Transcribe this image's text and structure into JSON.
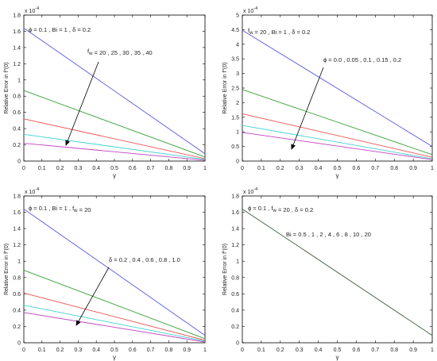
{
  "chart_data": [
    {
      "type": "line",
      "xlabel": "γ",
      "ylabel": "Relative Error in  f″(0)",
      "y_multiplier": "x 10",
      "y_exponent": "-4",
      "xlim": [
        0,
        1
      ],
      "ylim": [
        0,
        1.8
      ],
      "x_ticks": [
        "0",
        "0.1",
        "0.2",
        "0.3",
        "0.4",
        "0.5",
        "0.6",
        "0.7",
        "0.8",
        "0.9",
        "1"
      ],
      "y_ticks": [
        "0",
        "0.2",
        "0.4",
        "0.6",
        "0.8",
        "1",
        "1.2",
        "1.4",
        "1.6",
        "1.8"
      ],
      "params_label": "ϕ = 0.1  , Bi = 1 , δ = 0.2",
      "arrow_label": "f_w = 20 , 25 , 30 , 35 , 40",
      "series": [
        {
          "color": "#5a5ae0",
          "x": [
            0,
            1
          ],
          "y": [
            1.64,
            0.09
          ]
        },
        {
          "color": "#3aa03a",
          "x": [
            0,
            1
          ],
          "y": [
            0.87,
            0.05
          ]
        },
        {
          "color": "#e85050",
          "x": [
            0,
            1
          ],
          "y": [
            0.52,
            0.03
          ]
        },
        {
          "color": "#40d0d0",
          "x": [
            0,
            1
          ],
          "y": [
            0.33,
            0.02
          ]
        },
        {
          "color": "#c040c0",
          "x": [
            0,
            1
          ],
          "y": [
            0.22,
            0.01
          ]
        }
      ]
    },
    {
      "type": "line",
      "xlabel": "γ",
      "ylabel": "Relative Error in  f″(0)",
      "y_multiplier": "x 10",
      "y_exponent": "-4",
      "xlim": [
        0,
        1
      ],
      "ylim": [
        0,
        5
      ],
      "x_ticks": [
        "0",
        "0.1",
        "0.2",
        "0.3",
        "0.4",
        "0.5",
        "0.6",
        "0.7",
        "0.8",
        "0.9",
        "1"
      ],
      "y_ticks": [
        "0",
        "0.5",
        "1",
        "1.5",
        "2",
        "2.5",
        "3",
        "3.5",
        "4",
        "4.5",
        "5"
      ],
      "params_label": "f_w = 20  , Bi = 1 , δ = 0.2",
      "arrow_label": "ϕ = 0.0 , 0.05 , 0.1 , 0.15 , 0.2",
      "series": [
        {
          "color": "#5a5ae0",
          "x": [
            0,
            1
          ],
          "y": [
            4.48,
            0.5
          ]
        },
        {
          "color": "#3aa03a",
          "x": [
            0,
            1
          ],
          "y": [
            2.45,
            0.22
          ]
        },
        {
          "color": "#e85050",
          "x": [
            0,
            1
          ],
          "y": [
            1.62,
            0.13
          ]
        },
        {
          "color": "#40d0d0",
          "x": [
            0,
            1
          ],
          "y": [
            1.22,
            0.08
          ]
        },
        {
          "color": "#c040c0",
          "x": [
            0,
            1
          ],
          "y": [
            0.98,
            0.05
          ]
        }
      ]
    },
    {
      "type": "line",
      "xlabel": "γ",
      "ylabel": "Relative Error in  f″(0)",
      "y_multiplier": "x 10",
      "y_exponent": "-4",
      "xlim": [
        0,
        1
      ],
      "ylim": [
        0,
        1.8
      ],
      "x_ticks": [
        "0",
        "0.1",
        "0.2",
        "0.3",
        "0.4",
        "0.5",
        "0.6",
        "0.7",
        "0.8",
        "0.9",
        "1"
      ],
      "y_ticks": [
        "0",
        "0.2",
        "0.4",
        "0.6",
        "0.8",
        "1",
        "1.2",
        "1.4",
        "1.6",
        "1.8"
      ],
      "params_label": "ϕ = 0.1  , Bi = 1 , f_w = 20",
      "arrow_label": "δ = 0.2 , 0.4 , 0.6 , 0.8 , 1.0",
      "series": [
        {
          "color": "#5a5ae0",
          "x": [
            0,
            1
          ],
          "y": [
            1.64,
            0.09
          ]
        },
        {
          "color": "#3aa03a",
          "x": [
            0,
            1
          ],
          "y": [
            0.89,
            0.05
          ]
        },
        {
          "color": "#e85050",
          "x": [
            0,
            1
          ],
          "y": [
            0.61,
            0.03
          ]
        },
        {
          "color": "#40d0d0",
          "x": [
            0,
            1
          ],
          "y": [
            0.46,
            0.02
          ]
        },
        {
          "color": "#c040c0",
          "x": [
            0,
            1
          ],
          "y": [
            0.37,
            0.01
          ]
        }
      ]
    },
    {
      "type": "line",
      "xlabel": "γ",
      "ylabel": "Relative Error in  f″(0)",
      "y_multiplier": "x 10",
      "y_exponent": "-4",
      "xlim": [
        0,
        1
      ],
      "ylim": [
        0,
        1.8
      ],
      "x_ticks": [
        "0",
        "0.1",
        "0.2",
        "0.3",
        "0.4",
        "0.5",
        "0.6",
        "0.7",
        "0.8",
        "0.9",
        "1"
      ],
      "y_ticks": [
        "0",
        "0.2",
        "0.4",
        "0.6",
        "0.8",
        "1",
        "1.2",
        "1.4",
        "1.6",
        "1.8"
      ],
      "params_label": "ϕ = 0.1  , f_w = 20 , δ = 0.2",
      "annotation": "Bi = 0.5 , 1 , 2 , 4 , 6 , 8 , 10 , 20",
      "series": [
        {
          "color": "#3c5a3c",
          "x": [
            0,
            1
          ],
          "y": [
            1.64,
            0.09
          ]
        }
      ]
    }
  ]
}
